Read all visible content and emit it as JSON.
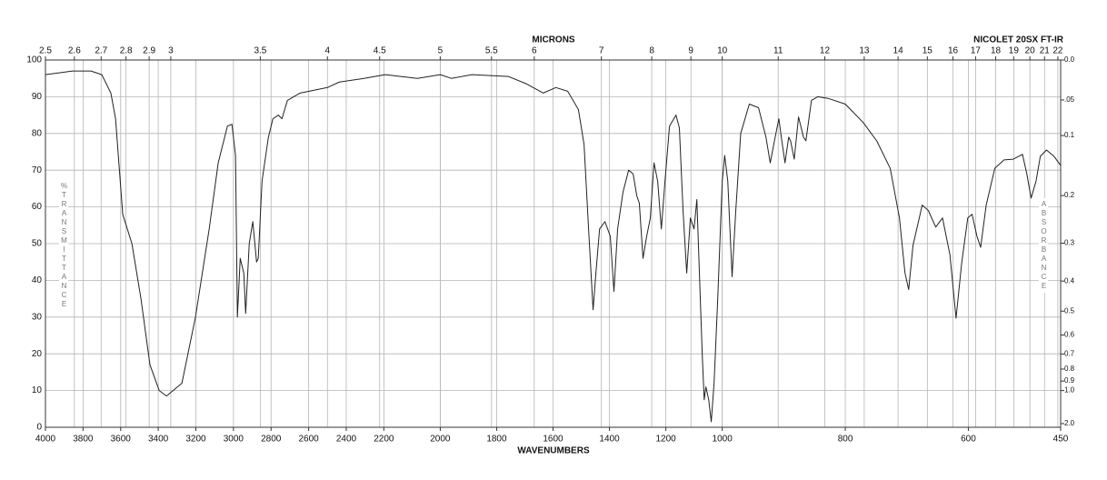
{
  "chart_data": {
    "type": "line",
    "title": "NICOLET 20SX FT-IR",
    "xlabel": "WAVENUMBERS",
    "x2label": "MICRONS",
    "ylabel": "%TRANSMITTANCE",
    "y2label": "ABSORBANCE",
    "color": "#222222",
    "grid": true,
    "xlim": [
      4000,
      450
    ],
    "xscale": {
      "type": "piecewise",
      "breaks": [
        2200,
        1000
      ]
    },
    "xticks": [
      4000,
      3800,
      3600,
      3400,
      3200,
      3000,
      2800,
      2600,
      2400,
      2200,
      2000,
      1800,
      1600,
      1400,
      1200,
      1000,
      800,
      600,
      450
    ],
    "x2scale": "reciprocal",
    "x2ticks": [
      2.5,
      2.6,
      2.7,
      2.8,
      2.9,
      3,
      3.5,
      4,
      4.5,
      5,
      5.5,
      6,
      7,
      8,
      9,
      10,
      11,
      12,
      13,
      14,
      15,
      16,
      17,
      18,
      19,
      20,
      21,
      22
    ],
    "ylim": [
      0,
      100
    ],
    "yticks": [
      0,
      10,
      20,
      30,
      40,
      50,
      60,
      70,
      80,
      90,
      100
    ],
    "y2scale": "absorbance",
    "y2ticks": [
      {
        "value": 0,
        "label": "0.0"
      },
      {
        "value": 0.05,
        "label": ".05"
      },
      0.1,
      0.2,
      0.3,
      0.4,
      0.5,
      0.6,
      0.7,
      0.8,
      0.9,
      {
        "value": 1,
        "label": "1.0"
      },
      {
        "value": 2,
        "label": "2.0"
      }
    ],
    "x": [
      4000,
      3855,
      3758,
      3700,
      3652,
      3627,
      3589,
      3540,
      3492,
      3444,
      3395,
      3356,
      3274,
      3202,
      3129,
      3081,
      3032,
      3008,
      2989,
      2979,
      2964,
      2945,
      2935,
      2916,
      2897,
      2877,
      2868,
      2848,
      2814,
      2790,
      2761,
      2742,
      2713,
      2645,
      2500,
      2437,
      2306,
      2195,
      2081,
      2000,
      1961,
      1887,
      1758,
      1694,
      1635,
      1590,
      1548,
      1510,
      1490,
      1474,
      1458,
      1448,
      1435,
      1416,
      1397,
      1384,
      1371,
      1352,
      1332,
      1316,
      1303,
      1294,
      1281,
      1268,
      1255,
      1242,
      1229,
      1216,
      1203,
      1187,
      1164,
      1152,
      1139,
      1126,
      1113,
      1100,
      1090,
      1081,
      1071,
      1064,
      1058,
      1048,
      1039,
      1029,
      1016,
      1000,
      996,
      991,
      984,
      978,
      970,
      956,
      941,
      929,
      922,
      914,
      908,
      904,
      898,
      892,
      889,
      883,
      876,
      868,
      864,
      855,
      845,
      827,
      800,
      771,
      749,
      727,
      712,
      703,
      697,
      690,
      675,
      665,
      653,
      642,
      630,
      620,
      611,
      601,
      594,
      586,
      580,
      571,
      557,
      542,
      527,
      512,
      505,
      498,
      490,
      483,
      473,
      461,
      450
    ],
    "values": [
      96,
      97,
      97,
      96,
      91,
      84,
      58,
      50,
      35,
      17,
      10,
      8.5,
      12,
      30,
      54,
      72,
      82,
      82.5,
      74,
      30,
      46,
      42,
      31,
      50,
      56,
      45,
      46,
      67,
      79,
      84,
      85,
      84,
      89,
      91,
      92.5,
      94,
      95,
      96,
      95,
      96,
      95,
      96,
      95.5,
      93.5,
      91,
      92.5,
      91.5,
      86.5,
      77,
      54,
      32,
      42,
      54,
      56,
      52,
      37,
      54,
      64,
      70,
      69,
      63,
      61,
      46,
      52,
      57,
      72,
      67,
      54,
      67,
      82,
      85,
      81.5,
      59,
      42,
      57,
      54,
      62,
      42,
      20,
      7.5,
      11,
      7.5,
      1.5,
      12,
      35,
      67,
      74,
      67,
      41,
      59,
      80,
      88,
      87,
      79,
      72,
      79,
      84,
      79,
      72,
      79,
      78,
      73,
      84.5,
      79,
      78,
      89,
      90,
      89.5,
      88,
      83,
      78,
      70.5,
      57,
      42,
      37.5,
      49.5,
      60.5,
      59,
      54.5,
      57,
      47,
      29.7,
      44.5,
      57,
      58,
      52,
      49,
      60.5,
      70.5,
      72.8,
      73,
      74.3,
      69,
      62.4,
      67,
      73.8,
      75.5,
      73.8,
      71.3
    ]
  }
}
